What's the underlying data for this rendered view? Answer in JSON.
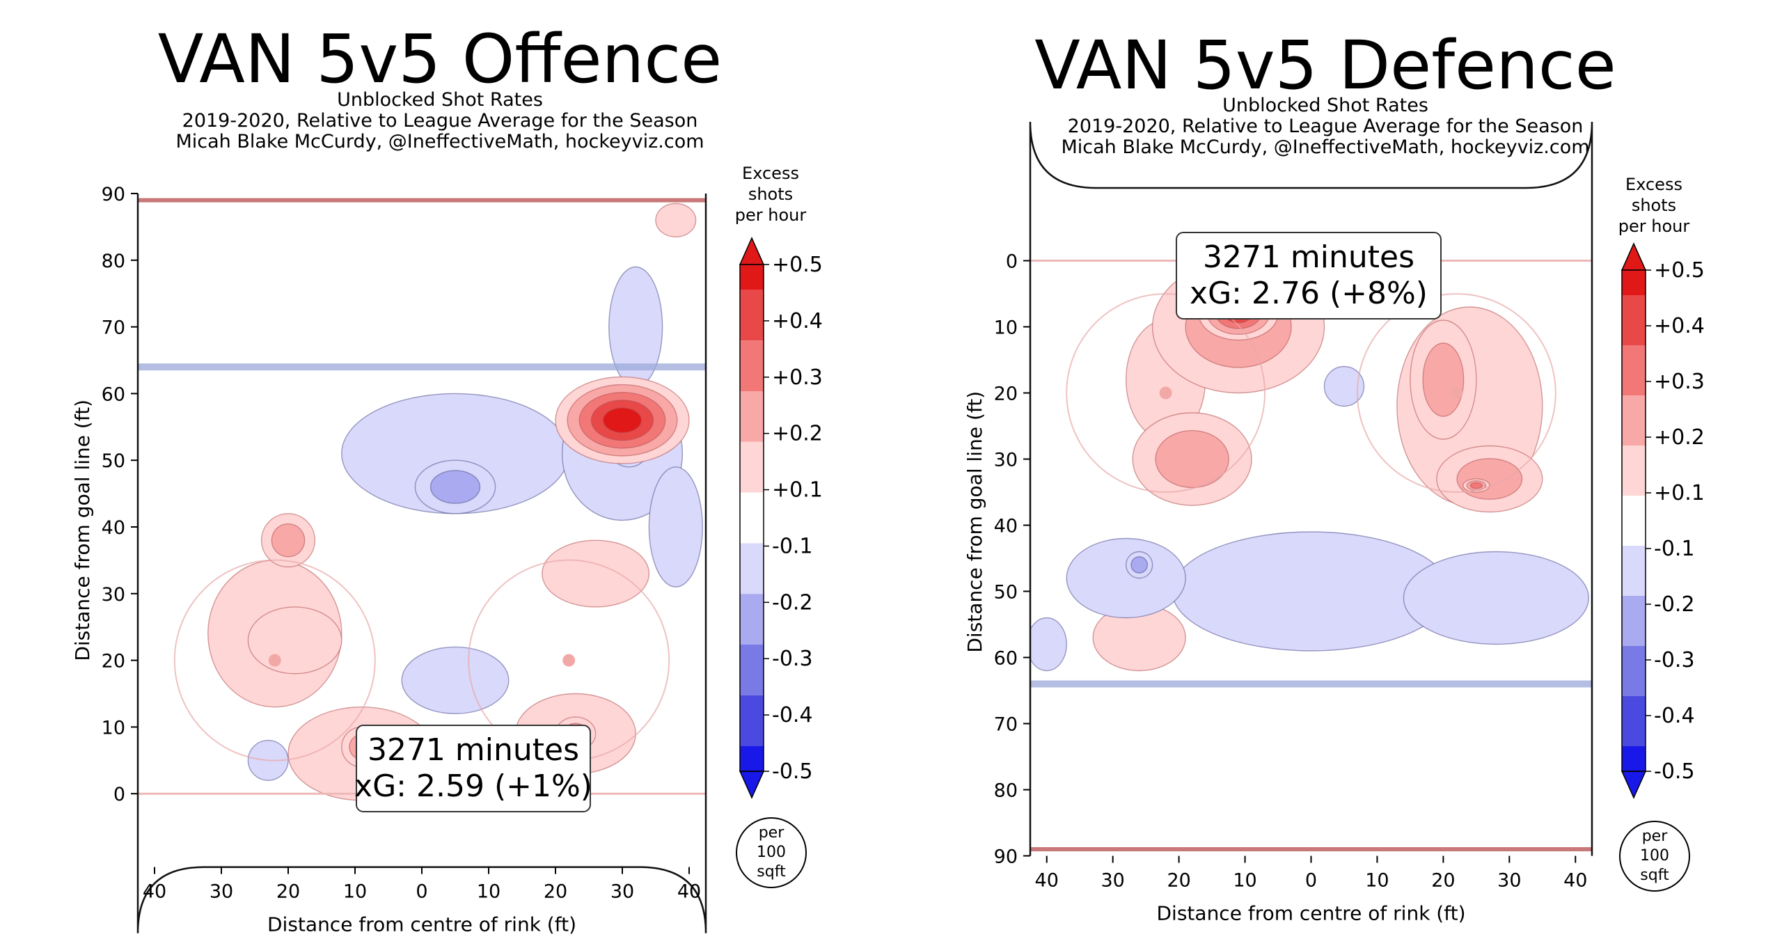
{
  "colors": {
    "pos_levels": [
      "#ffd6d6",
      "#f9a8a8",
      "#f27878",
      "#e94848",
      "#e01818"
    ],
    "neg_levels": [
      "#d9d9fb",
      "#aaaaf0",
      "#7a7ae6",
      "#4a4ae0",
      "#1818e8"
    ],
    "neutral": "#ffffff",
    "red_line": "#c87878",
    "blue_line": "#9aa8d8",
    "net": "#707070",
    "crease": "#d0f4f8"
  },
  "chart_data": [
    {
      "type": "heatmap",
      "title": "VAN 5v5 Offence",
      "subtitle_lines": [
        "Unblocked Shot Rates",
        "2019-2020, Relative to League Average for the Season",
        "Micah Blake McCurdy, @IneffectiveMath, hockeyviz.com"
      ],
      "xlabel": "Distance from centre of rink (ft)",
      "ylabel": "Distance from goal line (ft)",
      "x_ticks": [
        "40",
        "30",
        "20",
        "10",
        "0",
        "10",
        "20",
        "30",
        "40"
      ],
      "y_ticks": [
        "0",
        "10",
        "20",
        "30",
        "40",
        "50",
        "60",
        "70",
        "80",
        "90"
      ],
      "xlim": [
        -42.5,
        42.5
      ],
      "ylim": [
        90,
        -11
      ],
      "y_inverted": true,
      "annotation": {
        "lines": [
          "3271 minutes",
          "xG: 2.59 (+1%)"
        ]
      },
      "colorbar": {
        "title_lines": [
          "Excess",
          "shots",
          "per hour"
        ],
        "tick_labels": [
          "+0.5",
          "+0.4",
          "+0.3",
          "+0.2",
          "+0.1",
          "-0.1",
          "-0.2",
          "-0.3",
          "-0.4",
          "-0.5"
        ],
        "unit_lines": [
          "per",
          "100",
          "sqft"
        ]
      },
      "regions": [
        {
          "x": 30,
          "y": 56,
          "rx": 10,
          "ry": 6.5,
          "level": 5
        },
        {
          "x": -22,
          "y": 24,
          "rx": 10,
          "ry": 11,
          "level": 1
        },
        {
          "x": -20,
          "y": 38,
          "rx": 4,
          "ry": 4,
          "level": 2
        },
        {
          "x": -9,
          "y": 6,
          "rx": 11,
          "ry": 7,
          "level": 1
        },
        {
          "x": -9,
          "y": 7,
          "rx": 3,
          "ry": 3,
          "level": 2
        },
        {
          "x": 23,
          "y": 9,
          "rx": 9,
          "ry": 6,
          "level": 1
        },
        {
          "x": 23,
          "y": 9,
          "rx": 3,
          "ry": 2.5,
          "level": 2
        },
        {
          "x": -19,
          "y": 23,
          "rx": 7,
          "ry": 5,
          "level": 1
        },
        {
          "x": 26,
          "y": 33,
          "rx": 8,
          "ry": 5,
          "level": 1
        },
        {
          "x": 38,
          "y": 86,
          "rx": 3,
          "ry": 2.5,
          "level": 1
        },
        {
          "x": 5,
          "y": 51,
          "rx": 17,
          "ry": 9,
          "level": -1
        },
        {
          "x": 30,
          "y": 51,
          "rx": 9,
          "ry": 10,
          "level": -1
        },
        {
          "x": 5,
          "y": 46,
          "rx": 6,
          "ry": 4,
          "level": -2
        },
        {
          "x": 32,
          "y": 70,
          "rx": 4,
          "ry": 9,
          "level": -1
        },
        {
          "x": 38,
          "y": 40,
          "rx": 4,
          "ry": 9,
          "level": -1
        },
        {
          "x": 5,
          "y": 17,
          "rx": 8,
          "ry": 5,
          "level": -1
        },
        {
          "x": -23,
          "y": 5,
          "rx": 3,
          "ry": 3,
          "level": -1
        },
        {
          "x": 31,
          "y": 52,
          "rx": 3,
          "ry": 3,
          "level": -2
        }
      ]
    },
    {
      "type": "heatmap",
      "title": "VAN 5v5 Defence",
      "subtitle_lines": [
        "Unblocked Shot Rates",
        "2019-2020, Relative to League Average for the Season",
        "Micah Blake McCurdy, @IneffectiveMath, hockeyviz.com"
      ],
      "xlabel": "Distance from centre of rink (ft)",
      "ylabel": "Distance from goal line (ft)",
      "x_ticks": [
        "40",
        "30",
        "20",
        "10",
        "0",
        "10",
        "20",
        "30",
        "40"
      ],
      "y_ticks": [
        "0",
        "10",
        "20",
        "30",
        "40",
        "50",
        "60",
        "70",
        "80",
        "90"
      ],
      "xlim": [
        -42.5,
        42.5
      ],
      "ylim": [
        -11,
        90
      ],
      "y_inverted": false,
      "annotation": {
        "lines": [
          "3271 minutes",
          "xG: 2.76 (+8%)"
        ]
      },
      "colorbar": {
        "title_lines": [
          "Excess",
          "shots",
          "per hour"
        ],
        "tick_labels": [
          "+0.5",
          "+0.4",
          "+0.3",
          "+0.2",
          "+0.1",
          "-0.1",
          "-0.2",
          "-0.3",
          "-0.4",
          "-0.5"
        ],
        "unit_lines": [
          "per",
          "100",
          "sqft"
        ]
      },
      "regions": [
        {
          "x": -11,
          "y": 10,
          "rx": 13,
          "ry": 10,
          "level": 2
        },
        {
          "x": -11,
          "y": 8,
          "rx": 6,
          "ry": 4,
          "level": 4
        },
        {
          "x": -18,
          "y": 30,
          "rx": 9,
          "ry": 7,
          "level": 2
        },
        {
          "x": -22,
          "y": 18,
          "rx": 6,
          "ry": 9,
          "level": 1
        },
        {
          "x": 24,
          "y": 22,
          "rx": 11,
          "ry": 15,
          "level": 1
        },
        {
          "x": 20,
          "y": 18,
          "rx": 5,
          "ry": 9,
          "level": 2
        },
        {
          "x": 27,
          "y": 33,
          "rx": 8,
          "ry": 5,
          "level": 2
        },
        {
          "x": 25,
          "y": 34,
          "rx": 2,
          "ry": 1,
          "level": 3
        },
        {
          "x": -26,
          "y": 57,
          "rx": 7,
          "ry": 5,
          "level": 1
        },
        {
          "x": 0,
          "y": 50,
          "rx": 21,
          "ry": 9,
          "level": -1
        },
        {
          "x": 28,
          "y": 51,
          "rx": 14,
          "ry": 7,
          "level": -1
        },
        {
          "x": -28,
          "y": 48,
          "rx": 9,
          "ry": 6,
          "level": -1
        },
        {
          "x": -40,
          "y": 58,
          "rx": 3,
          "ry": 4,
          "level": -1
        },
        {
          "x": -26,
          "y": 46,
          "rx": 2,
          "ry": 2,
          "level": -2
        },
        {
          "x": 5,
          "y": 19,
          "rx": 3,
          "ry": 3,
          "level": -1
        }
      ]
    }
  ]
}
